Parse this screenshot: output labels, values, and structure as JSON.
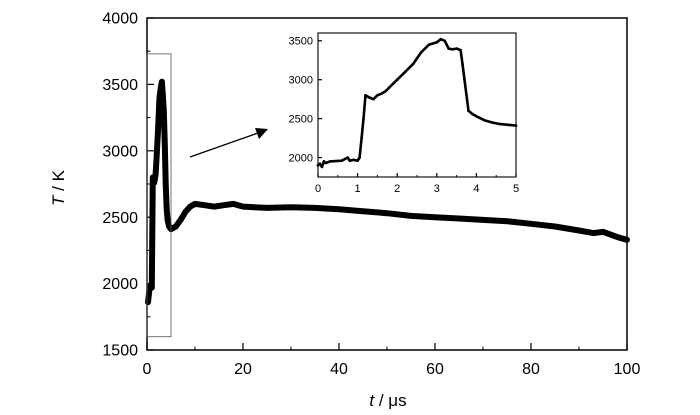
{
  "chart_data": [
    {
      "type": "line",
      "xlabel": "t / μs",
      "xlabel_var": "t",
      "xlabel_unit": " / μs",
      "ylabel": "T / K",
      "ylabel_var": "T",
      "ylabel_unit": " / K",
      "xlim": [
        0,
        100
      ],
      "ylim": [
        1500,
        4000
      ],
      "xticks": [
        0,
        20,
        40,
        60,
        80,
        100
      ],
      "yticks": [
        1500,
        2000,
        2500,
        3000,
        3500,
        4000
      ],
      "grid": false,
      "highlight_range_x": [
        0,
        5
      ],
      "highlight_range_y": [
        1600,
        3730
      ],
      "series": [
        {
          "x": [
            0.2,
            0.5,
            0.8,
            1.0,
            1.2,
            1.5,
            1.8,
            2.0,
            2.3,
            2.6,
            2.9,
            3.1,
            3.3,
            3.5,
            3.7,
            3.9,
            4.1,
            4.3,
            4.6,
            5.0,
            6,
            7,
            8,
            9,
            10,
            12,
            14,
            16,
            18,
            20,
            25,
            30,
            35,
            40,
            45,
            50,
            55,
            60,
            65,
            70,
            75,
            80,
            85,
            90,
            93,
            95,
            98,
            100
          ],
          "y": [
            1860,
            1950,
            1990,
            1970,
            2800,
            2760,
            2820,
            2950,
            3150,
            3400,
            3480,
            3520,
            3420,
            3300,
            3050,
            2750,
            2560,
            2480,
            2430,
            2410,
            2430,
            2480,
            2540,
            2580,
            2600,
            2590,
            2580,
            2590,
            2600,
            2580,
            2570,
            2575,
            2570,
            2560,
            2545,
            2530,
            2510,
            2500,
            2490,
            2480,
            2470,
            2450,
            2430,
            2400,
            2380,
            2390,
            2350,
            2330
          ]
        }
      ]
    },
    {
      "type": "line",
      "inset": true,
      "xlim": [
        0,
        5
      ],
      "ylim": [
        1750,
        3600
      ],
      "xticks": [
        0,
        1,
        2,
        3,
        4,
        5
      ],
      "yticks": [
        2000,
        2500,
        3000,
        3500
      ],
      "grid": false,
      "series": [
        {
          "x": [
            0.0,
            0.05,
            0.1,
            0.15,
            0.2,
            0.25,
            0.3,
            0.6,
            0.75,
            0.8,
            0.9,
            1.0,
            1.05,
            1.1,
            1.15,
            1.2,
            1.3,
            1.4,
            1.5,
            1.6,
            1.7,
            1.8,
            1.9,
            2.0,
            2.2,
            2.4,
            2.6,
            2.8,
            3.0,
            3.1,
            3.2,
            3.3,
            3.4,
            3.5,
            3.6,
            3.65,
            3.7,
            3.8,
            3.9,
            4.0,
            4.2,
            4.4,
            4.6,
            4.8,
            5.0
          ],
          "y": [
            1900,
            1920,
            1880,
            1950,
            1930,
            1940,
            1950,
            1960,
            2000,
            1960,
            1970,
            1960,
            2000,
            2250,
            2500,
            2800,
            2770,
            2750,
            2800,
            2820,
            2850,
            2900,
            2950,
            3000,
            3100,
            3200,
            3350,
            3450,
            3480,
            3520,
            3500,
            3400,
            3390,
            3400,
            3380,
            3200,
            3000,
            2600,
            2560,
            2530,
            2480,
            2450,
            2430,
            2420,
            2410
          ]
        }
      ]
    }
  ]
}
